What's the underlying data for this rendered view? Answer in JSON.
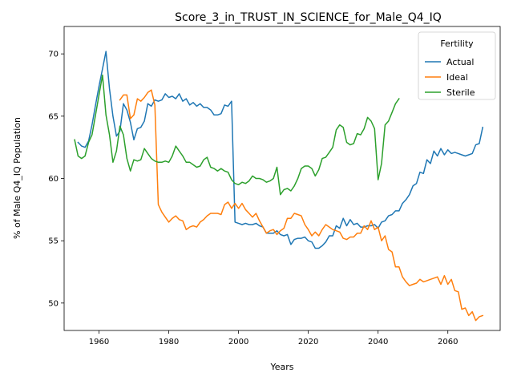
{
  "chart_data": {
    "type": "line",
    "title": "Score_3_in_TRUST_IN_SCIENCE_for_Male_Q4_IQ",
    "xlabel": "Years",
    "ylabel": "% of Male Q4_IQ Population",
    "xlim": [
      1950,
      2075
    ],
    "ylim": [
      47.8,
      72.2
    ],
    "xticks": [
      1960,
      1980,
      2000,
      2020,
      2040,
      2060
    ],
    "yticks": [
      50,
      55,
      60,
      65,
      70
    ],
    "grid": false,
    "legend": {
      "title": "Fertility",
      "placement": "top-right"
    },
    "series": [
      {
        "name": "Actual",
        "color": "#1f77b4",
        "x": [
          1954,
          1955,
          1956,
          1957,
          1958,
          1959,
          1960,
          1961,
          1962,
          1963,
          1964,
          1965,
          1966,
          1967,
          1968,
          1969,
          1970,
          1971,
          1972,
          1973,
          1974,
          1975,
          1976,
          1977,
          1978,
          1979,
          1980,
          1981,
          1982,
          1983,
          1984,
          1985,
          1986,
          1987,
          1988,
          1989,
          1990,
          1991,
          1992,
          1993,
          1994,
          1995,
          1996,
          1997,
          1998,
          1999,
          2000,
          2001,
          2002,
          2003,
          2004,
          2005,
          2006,
          2007,
          2008,
          2009,
          2010,
          2011,
          2012,
          2013,
          2014,
          2015,
          2016,
          2017,
          2018,
          2019,
          2020,
          2021,
          2022,
          2023,
          2024,
          2025,
          2026,
          2027,
          2028,
          2029,
          2030,
          2031,
          2032,
          2033,
          2034,
          2035,
          2036,
          2037,
          2038,
          2039,
          2040,
          2041,
          2042,
          2043,
          2044,
          2045,
          2046,
          2047,
          2048,
          2049,
          2050,
          2051,
          2052,
          2053,
          2054,
          2055,
          2056,
          2057,
          2058,
          2059,
          2060,
          2061,
          2062,
          2063,
          2064,
          2065,
          2066,
          2067,
          2068,
          2069,
          2070
        ],
        "y": [
          62.9,
          62.6,
          62.5,
          63.0,
          64.3,
          65.9,
          67.4,
          68.8,
          70.2,
          67.2,
          65.0,
          63.4,
          63.8,
          66.0,
          65.5,
          64.5,
          63.1,
          64.0,
          64.1,
          64.6,
          66.0,
          65.8,
          66.3,
          66.2,
          66.3,
          66.8,
          66.5,
          66.6,
          66.4,
          66.8,
          66.2,
          66.4,
          65.9,
          66.1,
          65.8,
          66.0,
          65.7,
          65.7,
          65.5,
          65.1,
          65.1,
          65.2,
          65.9,
          65.8,
          66.2,
          56.5,
          56.4,
          56.3,
          56.4,
          56.3,
          56.3,
          56.4,
          56.2,
          56.1,
          55.6,
          55.6,
          55.6,
          55.8,
          55.5,
          55.4,
          55.5,
          54.7,
          55.1,
          55.2,
          55.2,
          55.3,
          55.0,
          54.9,
          54.4,
          54.4,
          54.6,
          54.9,
          55.4,
          55.4,
          56.2,
          56.0,
          56.8,
          56.2,
          56.7,
          56.3,
          56.4,
          56.1,
          56.1,
          56.2,
          56.2,
          56.3,
          56.0,
          56.5,
          56.6,
          57.0,
          57.1,
          57.4,
          57.4,
          58.0,
          58.3,
          58.7,
          59.4,
          59.6,
          60.5,
          60.4,
          61.5,
          61.2,
          62.2,
          61.8,
          62.4,
          61.9,
          62.3,
          62.0,
          62.1,
          62.0,
          61.9,
          61.8,
          61.9,
          62.0,
          62.7,
          62.8,
          64.1
        ]
      },
      {
        "name": "Ideal",
        "color": "#ff7f0e",
        "x": [
          1966,
          1967,
          1968,
          1969,
          1970,
          1971,
          1972,
          1973,
          1974,
          1975,
          1976,
          1977,
          1978,
          1979,
          1980,
          1981,
          1982,
          1983,
          1984,
          1985,
          1986,
          1987,
          1988,
          1989,
          1990,
          1991,
          1992,
          1993,
          1994,
          1995,
          1996,
          1997,
          1998,
          1999,
          2000,
          2001,
          2002,
          2003,
          2004,
          2005,
          2006,
          2007,
          2008,
          2009,
          2010,
          2011,
          2012,
          2013,
          2014,
          2015,
          2016,
          2017,
          2018,
          2019,
          2020,
          2021,
          2022,
          2023,
          2024,
          2025,
          2026,
          2027,
          2028,
          2029,
          2030,
          2031,
          2032,
          2033,
          2034,
          2035,
          2036,
          2037,
          2038,
          2039,
          2040,
          2041,
          2042,
          2043,
          2044,
          2045,
          2046,
          2047,
          2048,
          2049,
          2050,
          2051,
          2052,
          2053,
          2054,
          2055,
          2056,
          2057,
          2058,
          2059,
          2060,
          2061,
          2062,
          2063,
          2064,
          2065,
          2066,
          2067,
          2068,
          2069,
          2070
        ],
        "y": [
          66.3,
          66.7,
          66.7,
          64.8,
          65.1,
          66.4,
          66.2,
          66.5,
          66.9,
          67.1,
          65.9,
          57.9,
          57.3,
          56.9,
          56.5,
          56.8,
          57.0,
          56.7,
          56.6,
          55.9,
          56.1,
          56.2,
          56.1,
          56.5,
          56.7,
          57.0,
          57.2,
          57.2,
          57.2,
          57.1,
          57.9,
          58.1,
          57.6,
          58.0,
          57.6,
          58.0,
          57.5,
          57.2,
          56.9,
          57.2,
          56.6,
          56.1,
          55.6,
          55.8,
          55.9,
          55.5,
          55.8,
          56.0,
          56.8,
          56.8,
          57.2,
          57.1,
          57.0,
          56.3,
          55.9,
          55.4,
          55.7,
          55.4,
          55.9,
          56.3,
          56.1,
          55.9,
          55.8,
          55.7,
          55.2,
          55.1,
          55.3,
          55.3,
          55.6,
          55.6,
          56.2,
          55.9,
          56.6,
          55.9,
          56.1,
          55.0,
          55.4,
          54.3,
          54.1,
          52.9,
          52.9,
          52.1,
          51.7,
          51.4,
          51.5,
          51.6,
          51.9,
          51.7,
          51.8,
          51.9,
          52.0,
          52.1,
          51.5,
          52.2,
          51.5,
          51.9,
          51.0,
          50.9,
          49.5,
          49.6,
          49.0,
          49.3,
          48.6,
          48.9,
          49.0
        ]
      },
      {
        "name": "Sterile",
        "color": "#2ca02c",
        "x": [
          1953,
          1954,
          1955,
          1956,
          1957,
          1958,
          1959,
          1960,
          1961,
          1962,
          1963,
          1964,
          1965,
          1966,
          1967,
          1968,
          1969,
          1970,
          1971,
          1972,
          1973,
          1974,
          1975,
          1976,
          1977,
          1978,
          1979,
          1980,
          1981,
          1982,
          1983,
          1984,
          1985,
          1986,
          1987,
          1988,
          1989,
          1990,
          1991,
          1992,
          1993,
          1994,
          1995,
          1996,
          1997,
          1998,
          1999,
          2000,
          2001,
          2002,
          2003,
          2004,
          2005,
          2006,
          2007,
          2008,
          2009,
          2010,
          2011,
          2012,
          2013,
          2014,
          2015,
          2016,
          2017,
          2018,
          2019,
          2020,
          2021,
          2022,
          2023,
          2024,
          2025,
          2026,
          2027,
          2028,
          2029,
          2030,
          2031,
          2032,
          2033,
          2034,
          2035,
          2036,
          2037,
          2038,
          2039,
          2040,
          2041,
          2042,
          2043,
          2044,
          2045,
          2046
        ],
        "y": [
          63.1,
          61.8,
          61.6,
          61.8,
          62.9,
          63.5,
          65.1,
          66.7,
          68.3,
          65.1,
          63.5,
          61.3,
          62.2,
          64.2,
          63.5,
          61.6,
          60.6,
          61.5,
          61.4,
          61.5,
          62.4,
          62.0,
          61.6,
          61.4,
          61.3,
          61.3,
          61.4,
          61.3,
          61.8,
          62.6,
          62.2,
          61.8,
          61.3,
          61.3,
          61.1,
          60.9,
          61.0,
          61.5,
          61.7,
          60.9,
          60.8,
          60.6,
          60.8,
          60.6,
          60.5,
          59.9,
          59.6,
          59.5,
          59.7,
          59.6,
          59.8,
          60.2,
          60.0,
          60.0,
          59.9,
          59.7,
          59.8,
          60.0,
          60.9,
          58.7,
          59.1,
          59.2,
          59.0,
          59.4,
          60.0,
          60.8,
          61.0,
          61.0,
          60.8,
          60.2,
          60.7,
          61.6,
          61.7,
          62.1,
          62.5,
          63.9,
          64.3,
          64.1,
          62.9,
          62.7,
          62.8,
          63.6,
          63.5,
          64.0,
          64.9,
          64.6,
          64.0,
          59.9,
          61.2,
          64.3,
          64.6,
          65.3,
          66.0,
          66.4
        ]
      }
    ]
  }
}
